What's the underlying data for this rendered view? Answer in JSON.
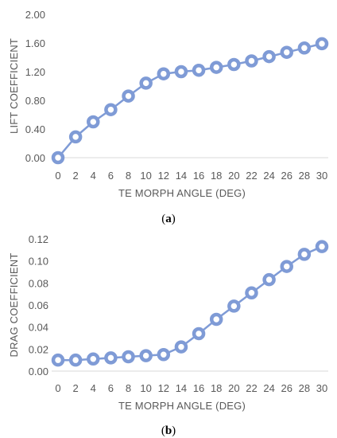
{
  "colors": {
    "series": "#7f9bd6",
    "marker_fill": "#ffffff",
    "axis": "#d9d9d9",
    "text": "#595959"
  },
  "chart_data": [
    {
      "type": "line",
      "caption": {
        "open": "(",
        "letter": "a",
        "close": ")"
      },
      "xlabel": "TE  MORPH ANGLE (DEG)",
      "ylabel": "LIFT COEFFICIENT",
      "x": [
        0,
        2,
        4,
        6,
        8,
        10,
        12,
        14,
        16,
        18,
        20,
        22,
        24,
        26,
        28,
        30
      ],
      "y": [
        0.0,
        0.29,
        0.5,
        0.67,
        0.86,
        1.04,
        1.17,
        1.2,
        1.22,
        1.26,
        1.3,
        1.35,
        1.41,
        1.47,
        1.53,
        1.59
      ],
      "ylim": [
        0,
        2
      ],
      "y_ticks": [
        "0.00",
        "0.40",
        "0.80",
        "1.20",
        "1.60",
        "2.00"
      ],
      "x_ticks": [
        "0",
        "2",
        "4",
        "6",
        "8",
        "10",
        "12",
        "14",
        "16",
        "18",
        "20",
        "22",
        "24",
        "26",
        "28",
        "30"
      ],
      "grid": false
    },
    {
      "type": "line",
      "caption": {
        "open": "(",
        "letter": "b",
        "close": ")"
      },
      "xlabel": "TE MORPH ANGLE (DEG)",
      "ylabel": "DRAG COEFFICIENT",
      "x": [
        0,
        2,
        4,
        6,
        8,
        10,
        12,
        14,
        16,
        18,
        20,
        22,
        24,
        26,
        28,
        30
      ],
      "y": [
        0.01,
        0.01,
        0.011,
        0.012,
        0.013,
        0.014,
        0.015,
        0.022,
        0.034,
        0.047,
        0.059,
        0.071,
        0.083,
        0.095,
        0.106,
        0.113
      ],
      "ylim": [
        0,
        0.12
      ],
      "y_ticks": [
        "0.00",
        "0.02",
        "0.04",
        "0.06",
        "0.08",
        "0.10",
        "0.12"
      ],
      "x_ticks": [
        "0",
        "2",
        "4",
        "6",
        "8",
        "10",
        "12",
        "14",
        "16",
        "18",
        "20",
        "22",
        "24",
        "26",
        "28",
        "30"
      ],
      "grid": false
    }
  ]
}
